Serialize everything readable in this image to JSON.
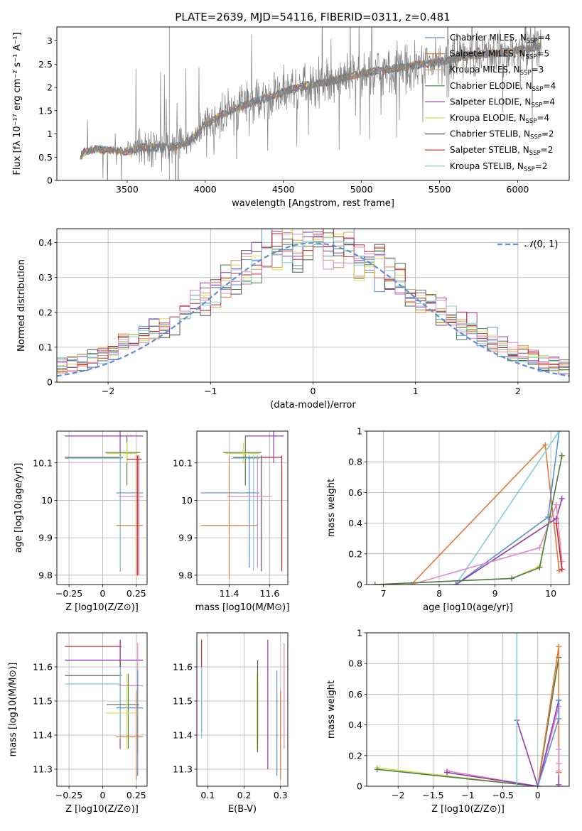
{
  "figure": {
    "title": "PLATE=2639, MJD=54116, FIBERID=0311, z=0.481"
  },
  "colors": {
    "chabrier_miles": "#5b8fd6",
    "salpeter_miles": "#e07b39",
    "kroupa_miles": "#c8a16a",
    "chabrier_elodie": "#4f7a4f",
    "salpeter_elodie": "#8e3bb0",
    "kroupa_elodie": "#d8e04a",
    "chabrier_stelib": "#555555",
    "salpeter_stelib": "#c0262a",
    "kroupa_stelib": "#7fcfd6",
    "pink": "#e08ac0",
    "data_gray": "#808080",
    "gaussian": "#5b8fd6"
  },
  "chart_data": [
    {
      "id": "spectrum",
      "type": "line",
      "xlabel": "wavelength [Angstrom, rest frame]",
      "ylabel": "Flux [fλ 10⁻¹⁷ erg cm⁻² s⁻¹ A⁻¹]",
      "xlim": [
        3050,
        6330
      ],
      "ylim": [
        0,
        3.3
      ],
      "xticks": [
        3500,
        4000,
        4500,
        5000,
        5500,
        6000
      ],
      "yticks": [
        0.0,
        0.5,
        1.0,
        1.5,
        2.0,
        2.5,
        3.0
      ],
      "legend_position": "top-right",
      "legend": [
        {
          "label": "Chabrier MILES, N_SSP=4",
          "text": "Chabrier MILES, N",
          "sub": "SSP",
          "suffix": "=4",
          "color": "#5b8fd6"
        },
        {
          "label": "Salpeter MILES, N_SSP=5",
          "text": "Salpeter MILES, N",
          "sub": "SSP",
          "suffix": "=5",
          "color": "#e07b39"
        },
        {
          "label": "Kroupa MILES, N_SSP=3",
          "text": "Kroupa MILES, N",
          "sub": "SSP",
          "suffix": "=3",
          "color": "#c8a16a"
        },
        {
          "label": "Chabrier ELODIE, N_SSP=4",
          "text": "Chabrier ELODIE, N",
          "sub": "SSP",
          "suffix": "=4",
          "color": "#4f7a4f"
        },
        {
          "label": "Salpeter ELODIE, N_SSP=4",
          "text": "Salpeter ELODIE, N",
          "sub": "SSP",
          "suffix": "=4",
          "color": "#8e3bb0"
        },
        {
          "label": "Kroupa ELODIE, N_SSP=4",
          "text": "Kroupa ELODIE, N",
          "sub": "SSP",
          "suffix": "=4",
          "color": "#d8e04a"
        },
        {
          "label": "Chabrier STELIB, N_SSP=2",
          "text": "Chabrier STELIB, N",
          "sub": "SSP",
          "suffix": "=2",
          "color": "#555555"
        },
        {
          "label": "Salpeter STELIB, N_SSP=2",
          "text": "Salpeter STELIB, N",
          "sub": "SSP",
          "suffix": "=2",
          "color": "#c0262a"
        },
        {
          "label": "Kroupa STELIB, N_SSP=2",
          "text": "Kroupa STELIB, N",
          "sub": "SSP",
          "suffix": "=2",
          "color": "#7fcfd6"
        }
      ],
      "continuum": {
        "x": [
          3200,
          3230,
          3300,
          3400,
          3500,
          3600,
          3700,
          3800,
          3900,
          3950,
          4000,
          4100,
          4200,
          4300,
          4400,
          4500,
          4600,
          4700,
          4800,
          4900,
          5000,
          5100,
          5200,
          5300,
          5400,
          5500,
          5600,
          5700,
          5800,
          5900,
          6000,
          6100,
          6150
        ],
        "y": [
          0.5,
          0.62,
          0.68,
          0.64,
          0.62,
          0.72,
          0.7,
          0.72,
          0.85,
          1.0,
          1.2,
          1.4,
          1.55,
          1.68,
          1.78,
          1.9,
          2.0,
          2.08,
          2.12,
          2.22,
          2.3,
          2.35,
          2.4,
          2.45,
          2.5,
          2.55,
          2.62,
          2.68,
          2.72,
          2.75,
          2.8,
          2.85,
          2.9
        ]
      }
    },
    {
      "id": "residuals",
      "type": "line",
      "xlabel": "(data-model)/error",
      "ylabel": "Normed distribution",
      "xlim": [
        -2.5,
        2.5
      ],
      "ylim": [
        0,
        0.44
      ],
      "xticks": [
        -2,
        -1,
        0,
        1,
        2
      ],
      "yticks": [
        0.0,
        0.1,
        0.2,
        0.3,
        0.4
      ],
      "legend_position": "top-right",
      "legend": [
        {
          "label": "N(0,1)",
          "prefix": "𝒩",
          "text": "(0, 1)",
          "color": "#5b8fd6"
        }
      ],
      "bins": {
        "start": -2.5,
        "width": 0.1,
        "count": 50
      }
    },
    {
      "id": "age_vs_Z",
      "type": "scatter",
      "xlabel": "Z [log10(Z/Z⊙)]",
      "ylabel": "age [log10(age/yr)]",
      "xlim": [
        -0.34,
        0.33
      ],
      "ylim": [
        9.775,
        10.185
      ],
      "xticks": [
        -0.25,
        0.0,
        0.25
      ],
      "yticks": [
        9.8,
        9.9,
        10.0,
        10.1
      ],
      "points": [
        {
          "x": 0.13,
          "y": 10.172,
          "xlo": -0.28,
          "xhi": 0.3,
          "ylo": 10.1,
          "yhi": 10.185,
          "color": "#8e3bb0"
        },
        {
          "x": 0.18,
          "y": 10.128,
          "xlo": 0.02,
          "xhi": 0.28,
          "ylo": 10.04,
          "yhi": 10.172,
          "color": "#4f7a4f"
        },
        {
          "x": 0.18,
          "y": 10.125,
          "xlo": 0.03,
          "xhi": 0.26,
          "ylo": 10.1,
          "yhi": 10.155,
          "color": "#d8e04a"
        },
        {
          "x": 0.13,
          "y": 10.115,
          "xlo": -0.28,
          "xhi": 0.15,
          "ylo": 9.81,
          "yhi": 10.12,
          "color": "#555555"
        },
        {
          "x": 0.13,
          "y": 10.112,
          "xlo": -0.28,
          "xhi": 0.14,
          "ylo": 9.812,
          "yhi": 10.12,
          "color": "#7fcfd6"
        },
        {
          "x": 0.26,
          "y": 10.02,
          "xlo": 0.1,
          "xhi": 0.3,
          "ylo": 9.8,
          "yhi": 10.12,
          "color": "#5b8fd6"
        },
        {
          "x": 0.27,
          "y": 10.01,
          "xlo": 0.12,
          "xhi": 0.3,
          "ylo": 9.8,
          "yhi": 10.12,
          "color": "#e08ac0"
        },
        {
          "x": 0.25,
          "y": 9.933,
          "xlo": 0.1,
          "xhi": 0.3,
          "ylo": 9.8,
          "yhi": 10.12,
          "color": "#e07b39"
        },
        {
          "x": 0.26,
          "y": 10.11,
          "xlo": 0.18,
          "xhi": 0.29,
          "ylo": 9.8,
          "yhi": 10.12,
          "color": "#c0262a"
        }
      ]
    },
    {
      "id": "age_vs_mass",
      "type": "scatter",
      "xlabel": "mass [log10(M/M⊙)]",
      "ylabel": "",
      "xlim": [
        11.24,
        11.69
      ],
      "ylim": [
        9.775,
        10.185
      ],
      "xticks": [
        11.4,
        11.6
      ],
      "yticks": [
        9.8,
        9.9,
        10.0,
        10.1
      ],
      "points": [
        {
          "x": 11.62,
          "y": 10.172,
          "xlo": 11.48,
          "xhi": 11.67,
          "ylo": 10.1,
          "yhi": 10.185,
          "color": "#8e3bb0"
        },
        {
          "x": 11.48,
          "y": 10.128,
          "xlo": 11.37,
          "xhi": 11.56,
          "ylo": 10.04,
          "yhi": 10.172,
          "color": "#4f7a4f"
        },
        {
          "x": 11.47,
          "y": 10.125,
          "xlo": 11.38,
          "xhi": 11.55,
          "ylo": 10.1,
          "yhi": 10.155,
          "color": "#d8e04a"
        },
        {
          "x": 11.56,
          "y": 10.115,
          "xlo": 11.42,
          "xhi": 11.61,
          "ylo": 9.81,
          "yhi": 10.12,
          "color": "#555555"
        },
        {
          "x": 11.52,
          "y": 10.112,
          "xlo": 11.41,
          "xhi": 11.55,
          "ylo": 9.812,
          "yhi": 10.12,
          "color": "#7fcfd6"
        },
        {
          "x": 11.5,
          "y": 10.02,
          "xlo": 11.26,
          "xhi": 11.55,
          "ylo": 9.82,
          "yhi": 10.12,
          "color": "#5b8fd6"
        },
        {
          "x": 11.54,
          "y": 10.01,
          "xlo": 11.39,
          "xhi": 11.61,
          "ylo": 9.82,
          "yhi": 10.12,
          "color": "#e08ac0"
        },
        {
          "x": 11.4,
          "y": 9.933,
          "xlo": 11.26,
          "xhi": 11.54,
          "ylo": 9.79,
          "yhi": 10.12,
          "color": "#e07b39"
        },
        {
          "x": 11.66,
          "y": 10.115,
          "xlo": 11.56,
          "xhi": 11.66,
          "ylo": 9.81,
          "yhi": 10.12,
          "color": "#c0262a"
        }
      ]
    },
    {
      "id": "massweight_vs_age",
      "type": "line",
      "xlabel": "age [log10(age/yr)]",
      "ylabel": "mass weight",
      "xlim": [
        6.7,
        10.33
      ],
      "ylim": [
        0,
        1.0
      ],
      "xticks": [
        7,
        8,
        9,
        10
      ],
      "yticks": [
        0.0,
        0.2,
        0.4,
        0.6,
        0.8,
        1.0
      ],
      "series": [
        {
          "color": "#e07b39",
          "x": [
            7.5,
            9.9,
            10.15
          ],
          "y": [
            0.0,
            0.91,
            0.09
          ]
        },
        {
          "color": "#5b8fd6",
          "x": [
            8.3,
            9.95,
            10.15
          ],
          "y": [
            0.0,
            0.44,
            1.0
          ]
        },
        {
          "color": "#7fcfd6",
          "x": [
            8.3,
            10.15
          ],
          "y": [
            0.0,
            1.0
          ]
        },
        {
          "color": "#8e3bb0",
          "x": [
            8.3,
            10.1,
            10.2
          ],
          "y": [
            0.0,
            0.43,
            0.56
          ]
        },
        {
          "color": "#e08ac0",
          "x": [
            7.5,
            9.8,
            10.1,
            10.2
          ],
          "y": [
            0.0,
            0.24,
            0.52,
            0.15
          ]
        },
        {
          "color": "#d8e04a",
          "x": [
            6.85,
            9.3,
            9.8,
            10.2
          ],
          "y": [
            0.0,
            0.04,
            0.12,
            0.84
          ]
        },
        {
          "color": "#4f7a4f",
          "x": [
            6.85,
            9.3,
            9.8,
            10.2
          ],
          "y": [
            0.0,
            0.04,
            0.11,
            0.84
          ]
        },
        {
          "color": "#c0262a",
          "x": [
            10.1,
            10.2
          ],
          "y": [
            0.4,
            0.1
          ]
        }
      ]
    },
    {
      "id": "mass_vs_Z",
      "type": "scatter",
      "xlabel": "Z [log10(Z/Z⊙)]",
      "ylabel": "mass [log10(M/M⊙)]",
      "xlim": [
        -0.34,
        0.33
      ],
      "ylim": [
        11.25,
        11.7
      ],
      "xticks": [
        -0.25,
        0.0,
        0.25
      ],
      "yticks": [
        11.3,
        11.4,
        11.5,
        11.6
      ],
      "points": [
        {
          "x": 0.13,
          "y": 11.66,
          "xlo": -0.28,
          "xhi": 0.14,
          "ylo": 11.41,
          "yhi": 11.68,
          "color": "#c0262a"
        },
        {
          "x": 0.13,
          "y": 11.62,
          "xlo": -0.28,
          "xhi": 0.3,
          "ylo": 11.36,
          "yhi": 11.68,
          "color": "#8e3bb0"
        },
        {
          "x": 0.13,
          "y": 11.575,
          "xlo": -0.28,
          "xhi": 0.14,
          "ylo": 11.41,
          "yhi": 11.62,
          "color": "#555555"
        },
        {
          "x": 0.13,
          "y": 11.55,
          "xlo": -0.28,
          "xhi": 0.14,
          "ylo": 11.39,
          "yhi": 11.6,
          "color": "#7fcfd6"
        },
        {
          "x": 0.26,
          "y": 11.545,
          "xlo": 0.12,
          "xhi": 0.3,
          "ylo": 11.35,
          "yhi": 11.67,
          "color": "#e08ac0"
        },
        {
          "x": 0.19,
          "y": 11.49,
          "xlo": 0.03,
          "xhi": 0.27,
          "ylo": 11.36,
          "yhi": 11.58,
          "color": "#4f7a4f"
        },
        {
          "x": 0.26,
          "y": 11.48,
          "xlo": 0.1,
          "xhi": 0.3,
          "ylo": 11.28,
          "yhi": 11.59,
          "color": "#5b8fd6"
        },
        {
          "x": 0.18,
          "y": 11.465,
          "xlo": 0.02,
          "xhi": 0.27,
          "ylo": 11.36,
          "yhi": 11.58,
          "color": "#d8e04a"
        },
        {
          "x": 0.25,
          "y": 11.395,
          "xlo": 0.1,
          "xhi": 0.3,
          "ylo": 11.27,
          "yhi": 11.53,
          "color": "#e07b39"
        }
      ]
    },
    {
      "id": "mass_vs_ebv",
      "type": "scatter",
      "xlabel": "E(B-V)",
      "ylabel": "",
      "xlim": [
        0.07,
        0.32
      ],
      "ylim": [
        11.25,
        11.7
      ],
      "xticks": [
        0.1,
        0.2,
        0.3
      ],
      "yticks": [
        11.3,
        11.4,
        11.5,
        11.6
      ],
      "points": [
        {
          "x": 0.083,
          "y": 11.66,
          "ylo": 11.41,
          "yhi": 11.68,
          "color": "#c0262a"
        },
        {
          "x": 0.083,
          "y": 11.55,
          "ylo": 11.39,
          "yhi": 11.6,
          "color": "#7fcfd6"
        },
        {
          "x": 0.237,
          "y": 11.575,
          "ylo": 11.35,
          "yhi": 11.62,
          "color": "#555555"
        },
        {
          "x": 0.235,
          "y": 11.465,
          "ylo": 11.36,
          "yhi": 11.58,
          "color": "#d8e04a"
        },
        {
          "x": 0.265,
          "y": 11.62,
          "ylo": 11.3,
          "yhi": 11.68,
          "color": "#8e3bb0"
        },
        {
          "x": 0.29,
          "y": 11.48,
          "ylo": 11.28,
          "yhi": 11.59,
          "color": "#5b8fd6"
        },
        {
          "x": 0.3,
          "y": 11.395,
          "ylo": 11.27,
          "yhi": 11.53,
          "color": "#e07b39"
        },
        {
          "x": 0.31,
          "y": 11.545,
          "ylo": 11.36,
          "yhi": 11.67,
          "color": "#e08ac0"
        }
      ]
    },
    {
      "id": "massweight_vs_Z",
      "type": "line",
      "xlabel": "Z [log10(Z/Z⊙)]",
      "ylabel": "mass weight",
      "xlim": [
        -2.45,
        0.45
      ],
      "ylim": [
        0,
        1.0
      ],
      "xticks": [
        -2.0,
        -1.5,
        -1.0,
        -0.5,
        0.0
      ],
      "yticks": [
        0.0,
        0.2,
        0.4,
        0.6,
        0.8,
        1.0
      ],
      "series": [
        {
          "color": "#d8e04a",
          "x": [
            -2.3,
            0.0,
            0.3
          ],
          "y": [
            0.12,
            0.0,
            0.84
          ]
        },
        {
          "color": "#4f7a4f",
          "x": [
            -2.3,
            0.0,
            0.3
          ],
          "y": [
            0.11,
            0.0,
            0.84
          ]
        },
        {
          "color": "#e08ac0",
          "x": [
            -1.3,
            0.0,
            0.3,
            0.3
          ],
          "y": [
            0.1,
            0.0,
            0.52,
            0.15
          ]
        },
        {
          "color": "#8e3bb0",
          "x": [
            -1.3,
            0.0,
            0.3,
            0.3
          ],
          "y": [
            0.09,
            0.0,
            0.56,
            0.01
          ]
        },
        {
          "color": "#8e3bb0",
          "x": [
            -0.3,
            0.0
          ],
          "y": [
            0.43,
            0.0
          ]
        },
        {
          "color": "#e07b39",
          "x": [
            0.0,
            0.3,
            0.3
          ],
          "y": [
            0.0,
            0.91,
            0.09
          ]
        },
        {
          "color": "#5b8fd6",
          "x": [
            0.0,
            0.3,
            0.3
          ],
          "y": [
            0.0,
            0.44,
            0.56
          ]
        },
        {
          "color": "#7fcfd6",
          "x": [
            -0.3,
            -0.3
          ],
          "y": [
            0.0,
            1.0
          ]
        },
        {
          "color": "#e08ac0",
          "x": [
            0.3,
            0.3
          ],
          "y": [
            0.24,
            0.1
          ]
        }
      ]
    }
  ]
}
